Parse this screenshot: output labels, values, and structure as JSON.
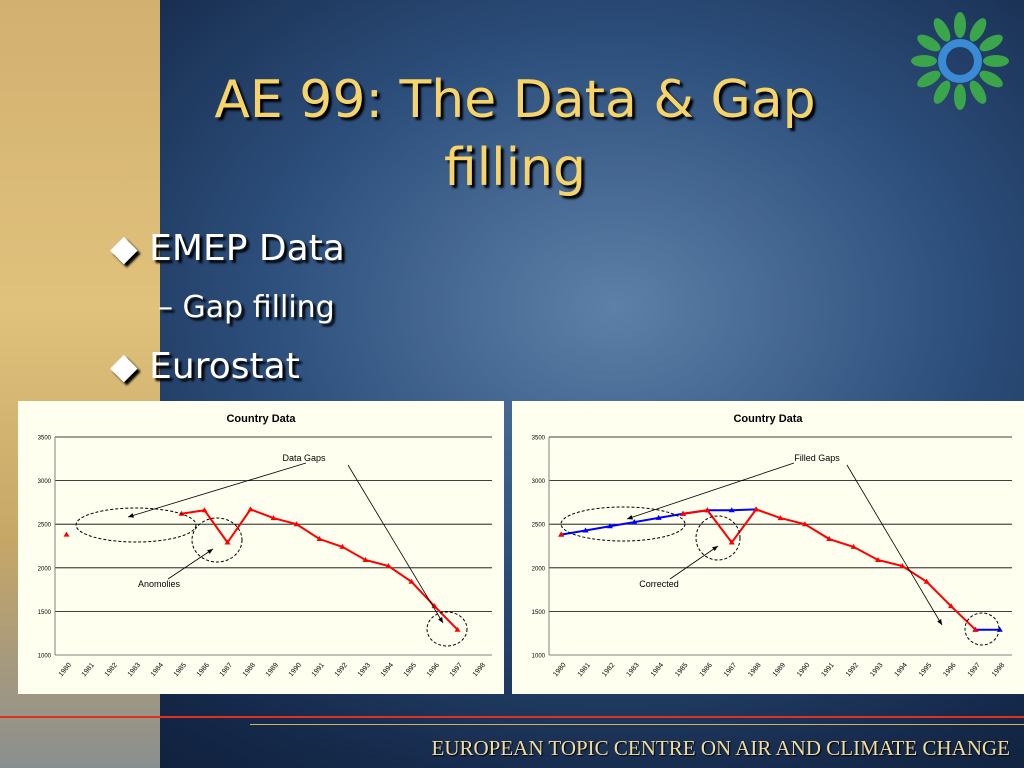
{
  "slide": {
    "title": "AE 99: The Data & Gap filling",
    "bullets": [
      {
        "text": "EMEP Data",
        "sub": [
          "Gap filling"
        ]
      },
      {
        "text": "Eurostat",
        "sub": []
      }
    ],
    "footer": "EUROPEAN TOPIC CENTRE ON AIR AND CLIMATE CHANGE"
  },
  "chart_data": [
    {
      "type": "line",
      "title": "Country Data",
      "categories": [
        "1980",
        "1981",
        "1982",
        "1983",
        "1984",
        "1985",
        "1986",
        "1987",
        "1988",
        "1989",
        "1990",
        "1991",
        "1992",
        "1993",
        "1994",
        "1995",
        "1996",
        "1997",
        "1998"
      ],
      "series": [
        {
          "color": "#ff0000",
          "values": [
            2380,
            null,
            null,
            null,
            null,
            2620,
            2660,
            2290,
            2670,
            2570,
            2500,
            2330,
            2240,
            2090,
            2020,
            1840,
            1560,
            1290,
            null
          ]
        }
      ],
      "ylim": [
        1000,
        3500
      ],
      "yticks": [
        1000,
        1500,
        2000,
        2500,
        3000,
        3500
      ],
      "grid": true,
      "annotations": [
        "Data Gaps",
        "Anomolies"
      ]
    },
    {
      "type": "line",
      "title": "Country Data",
      "categories": [
        "1980",
        "1981",
        "1982",
        "1983",
        "1984",
        "1985",
        "1986",
        "1987",
        "1988",
        "1989",
        "1990",
        "1991",
        "1992",
        "1993",
        "1994",
        "1995",
        "1996",
        "1997",
        "1998"
      ],
      "series": [
        {
          "color": "#0000ff",
          "values": [
            2380,
            2428,
            2476,
            2524,
            2572,
            2620,
            2660,
            2660,
            2670,
            null,
            null,
            null,
            null,
            null,
            null,
            null,
            null,
            1290,
            1290
          ]
        },
        {
          "color": "#ff0000",
          "values": [
            2380,
            null,
            null,
            null,
            null,
            2620,
            2660,
            2290,
            2670,
            2570,
            2500,
            2330,
            2240,
            2090,
            2020,
            1840,
            1560,
            1290,
            null
          ]
        }
      ],
      "ylim": [
        1000,
        3500
      ],
      "yticks": [
        1000,
        1500,
        2000,
        2500,
        3000,
        3500
      ],
      "grid": true,
      "annotations": [
        "Filled Gaps",
        "Corrected"
      ]
    }
  ]
}
